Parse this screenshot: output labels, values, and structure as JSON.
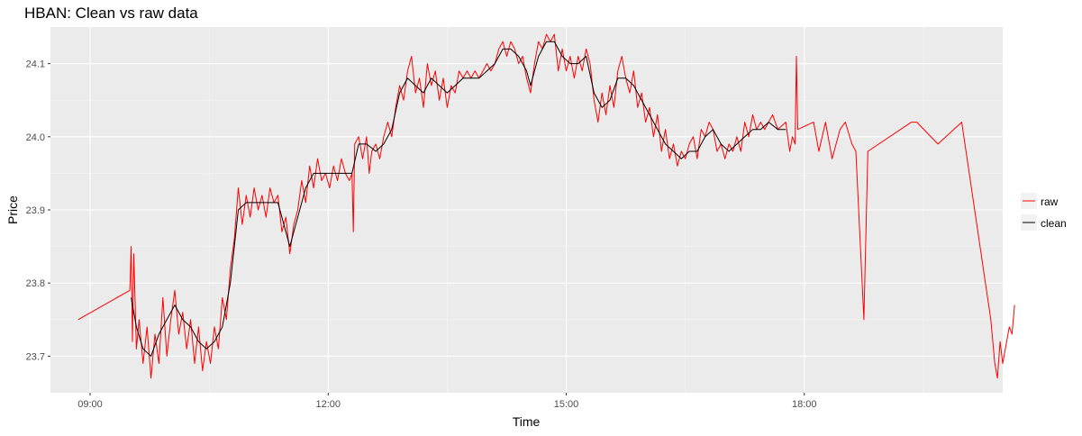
{
  "chart_data": {
    "type": "line",
    "title": "HBAN: Clean vs raw data",
    "xlabel": "Time",
    "ylabel": "Price",
    "xlim": [
      "08:30",
      "20:30"
    ],
    "ylim": [
      23.65,
      24.15
    ],
    "x_ticks": [
      "09:00",
      "12:00",
      "15:00",
      "18:00"
    ],
    "y_ticks": [
      "23.7",
      "23.8",
      "23.9",
      "24.0",
      "24.1"
    ],
    "grid": true,
    "legend": "right",
    "background": "#ebebeb",
    "series": [
      {
        "name": "raw",
        "color": "#ff0000",
        "points": [
          [
            "08:51",
            23.75
          ],
          [
            "09:30",
            23.79
          ],
          [
            "09:31",
            23.85
          ],
          [
            "09:32",
            23.72
          ],
          [
            "09:33",
            23.84
          ],
          [
            "09:35",
            23.71
          ],
          [
            "09:37",
            23.75
          ],
          [
            "09:40",
            23.69
          ],
          [
            "09:43",
            23.74
          ],
          [
            "09:46",
            23.67
          ],
          [
            "09:49",
            23.73
          ],
          [
            "09:52",
            23.69
          ],
          [
            "09:55",
            23.78
          ],
          [
            "09:58",
            23.7
          ],
          [
            "10:01",
            23.75
          ],
          [
            "10:04",
            23.79
          ],
          [
            "10:07",
            23.73
          ],
          [
            "10:10",
            23.76
          ],
          [
            "10:13",
            23.71
          ],
          [
            "10:16",
            23.75
          ],
          [
            "10:19",
            23.69
          ],
          [
            "10:22",
            23.74
          ],
          [
            "10:25",
            23.68
          ],
          [
            "10:28",
            23.72
          ],
          [
            "10:31",
            23.69
          ],
          [
            "10:34",
            23.74
          ],
          [
            "10:37",
            23.71
          ],
          [
            "10:40",
            23.78
          ],
          [
            "10:43",
            23.75
          ],
          [
            "10:46",
            23.82
          ],
          [
            "10:49",
            23.86
          ],
          [
            "10:52",
            23.93
          ],
          [
            "10:55",
            23.88
          ],
          [
            "10:58",
            23.92
          ],
          [
            "11:01",
            23.89
          ],
          [
            "11:04",
            23.93
          ],
          [
            "11:07",
            23.9
          ],
          [
            "11:10",
            23.92
          ],
          [
            "11:13",
            23.89
          ],
          [
            "11:16",
            23.93
          ],
          [
            "11:19",
            23.91
          ],
          [
            "11:22",
            23.92
          ],
          [
            "11:25",
            23.87
          ],
          [
            "11:28",
            23.89
          ],
          [
            "11:31",
            23.84
          ],
          [
            "11:34",
            23.88
          ],
          [
            "11:37",
            23.9
          ],
          [
            "11:40",
            23.94
          ],
          [
            "11:43",
            23.91
          ],
          [
            "11:46",
            23.96
          ],
          [
            "11:49",
            23.93
          ],
          [
            "11:52",
            23.97
          ],
          [
            "11:55",
            23.94
          ],
          [
            "11:58",
            23.95
          ],
          [
            "12:01",
            23.93
          ],
          [
            "12:04",
            23.96
          ],
          [
            "12:07",
            23.94
          ],
          [
            "12:10",
            23.97
          ],
          [
            "12:13",
            23.95
          ],
          [
            "12:16",
            23.94
          ],
          [
            "12:18",
            23.95
          ],
          [
            "12:19",
            23.87
          ],
          [
            "12:20",
            23.99
          ],
          [
            "12:23",
            24.0
          ],
          [
            "12:26",
            23.97
          ],
          [
            "12:29",
            24.0
          ],
          [
            "12:31",
            23.95
          ],
          [
            "12:33",
            23.98
          ],
          [
            "12:36",
            23.99
          ],
          [
            "12:39",
            23.97
          ],
          [
            "12:42",
            24.0
          ],
          [
            "12:45",
            24.02
          ],
          [
            "12:48",
            24.0
          ],
          [
            "12:51",
            24.04
          ],
          [
            "12:54",
            24.07
          ],
          [
            "12:57",
            24.05
          ],
          [
            "13:00",
            24.09
          ],
          [
            "13:03",
            24.11
          ],
          [
            "13:06",
            24.06
          ],
          [
            "13:09",
            24.08
          ],
          [
            "13:12",
            24.04
          ],
          [
            "13:15",
            24.1
          ],
          [
            "13:18",
            24.07
          ],
          [
            "13:21",
            24.09
          ],
          [
            "13:24",
            24.05
          ],
          [
            "13:27",
            24.08
          ],
          [
            "13:30",
            24.04
          ],
          [
            "13:33",
            24.07
          ],
          [
            "13:36",
            24.06
          ],
          [
            "13:39",
            24.09
          ],
          [
            "13:42",
            24.08
          ],
          [
            "13:45",
            24.09
          ],
          [
            "13:48",
            24.08
          ],
          [
            "13:51",
            24.09
          ],
          [
            "13:54",
            24.08
          ],
          [
            "13:57",
            24.09
          ],
          [
            "14:00",
            24.1
          ],
          [
            "14:03",
            24.09
          ],
          [
            "14:06",
            24.1
          ],
          [
            "14:09",
            24.12
          ],
          [
            "14:12",
            24.13
          ],
          [
            "14:15",
            24.11
          ],
          [
            "14:18",
            24.13
          ],
          [
            "14:21",
            24.12
          ],
          [
            "14:24",
            24.1
          ],
          [
            "14:27",
            24.11
          ],
          [
            "14:30",
            24.08
          ],
          [
            "14:33",
            24.06
          ],
          [
            "14:36",
            24.1
          ],
          [
            "14:39",
            24.13
          ],
          [
            "14:42",
            24.12
          ],
          [
            "14:45",
            24.14
          ],
          [
            "14:48",
            24.13
          ],
          [
            "14:51",
            24.14
          ],
          [
            "14:54",
            24.09
          ],
          [
            "14:57",
            24.12
          ],
          [
            "15:00",
            24.09
          ],
          [
            "15:03",
            24.11
          ],
          [
            "15:06",
            24.08
          ],
          [
            "15:09",
            24.11
          ],
          [
            "15:12",
            24.09
          ],
          [
            "15:15",
            24.12
          ],
          [
            "15:18",
            24.1
          ],
          [
            "15:21",
            24.05
          ],
          [
            "15:24",
            24.02
          ],
          [
            "15:27",
            24.06
          ],
          [
            "15:30",
            24.03
          ],
          [
            "15:33",
            24.07
          ],
          [
            "15:36",
            24.04
          ],
          [
            "15:39",
            24.09
          ],
          [
            "15:42",
            24.11
          ],
          [
            "15:45",
            24.08
          ],
          [
            "15:48",
            24.06
          ],
          [
            "15:51",
            24.09
          ],
          [
            "15:54",
            24.04
          ],
          [
            "15:57",
            24.06
          ],
          [
            "16:00",
            24.02
          ],
          [
            "16:03",
            24.04
          ],
          [
            "16:06",
            24.0
          ],
          [
            "16:09",
            24.03
          ],
          [
            "16:12",
            23.98
          ],
          [
            "16:15",
            24.01
          ],
          [
            "16:18",
            23.97
          ],
          [
            "16:21",
            23.99
          ],
          [
            "16:24",
            23.96
          ],
          [
            "16:27",
            23.98
          ],
          [
            "16:30",
            23.97
          ],
          [
            "16:33",
            23.99
          ],
          [
            "16:36",
            24.0
          ],
          [
            "16:39",
            23.97
          ],
          [
            "16:42",
            24.01
          ],
          [
            "16:45",
            24.0
          ],
          [
            "16:48",
            24.02
          ],
          [
            "16:51",
            24.01
          ],
          [
            "16:54",
            23.98
          ],
          [
            "16:57",
            23.99
          ],
          [
            "17:00",
            23.97
          ],
          [
            "17:03",
            23.99
          ],
          [
            "17:06",
            23.98
          ],
          [
            "17:09",
            24.0
          ],
          [
            "17:12",
            23.98
          ],
          [
            "17:15",
            24.02
          ],
          [
            "17:18",
            24.0
          ],
          [
            "17:21",
            24.03
          ],
          [
            "17:24",
            24.01
          ],
          [
            "17:27",
            24.02
          ],
          [
            "17:30",
            24.01
          ],
          [
            "17:33",
            24.02
          ],
          [
            "17:36",
            24.03
          ],
          [
            "17:40",
            24.01
          ],
          [
            "17:46",
            24.02
          ],
          [
            "17:49",
            23.98
          ],
          [
            "17:51",
            24.0
          ],
          [
            "17:53",
            23.99
          ],
          [
            "17:54",
            24.11
          ],
          [
            "17:55",
            24.01
          ],
          [
            "18:07",
            24.02
          ],
          [
            "18:11",
            23.98
          ],
          [
            "18:16",
            24.02
          ],
          [
            "18:21",
            23.97
          ],
          [
            "18:27",
            24.01
          ],
          [
            "18:31",
            24.02
          ],
          [
            "18:36",
            23.99
          ],
          [
            "18:39",
            23.98
          ],
          [
            "18:45",
            23.75
          ],
          [
            "18:48",
            23.98
          ],
          [
            "19:21",
            24.02
          ],
          [
            "19:25",
            24.02
          ],
          [
            "19:41",
            23.99
          ],
          [
            "19:59",
            24.02
          ],
          [
            "20:21",
            23.75
          ],
          [
            "20:24",
            23.69
          ],
          [
            "20:26",
            23.67
          ],
          [
            "20:28",
            23.72
          ],
          [
            "20:30",
            23.69
          ],
          [
            "20:32",
            23.71
          ],
          [
            "20:35",
            23.74
          ],
          [
            "20:37",
            23.73
          ],
          [
            "20:39",
            23.77
          ]
        ]
      },
      {
        "name": "clean",
        "color": "#000000",
        "points": [
          [
            "09:31",
            23.78
          ],
          [
            "09:35",
            23.74
          ],
          [
            "09:40",
            23.71
          ],
          [
            "09:46",
            23.7
          ],
          [
            "09:52",
            23.73
          ],
          [
            "09:58",
            23.75
          ],
          [
            "10:04",
            23.77
          ],
          [
            "10:10",
            23.75
          ],
          [
            "10:16",
            23.74
          ],
          [
            "10:22",
            23.72
          ],
          [
            "10:28",
            23.71
          ],
          [
            "10:34",
            23.72
          ],
          [
            "10:40",
            23.74
          ],
          [
            "10:46",
            23.8
          ],
          [
            "10:52",
            23.9
          ],
          [
            "10:58",
            23.91
          ],
          [
            "11:04",
            23.91
          ],
          [
            "11:10",
            23.91
          ],
          [
            "11:16",
            23.91
          ],
          [
            "11:22",
            23.91
          ],
          [
            "11:28",
            23.87
          ],
          [
            "11:31",
            23.85
          ],
          [
            "11:37",
            23.89
          ],
          [
            "11:43",
            23.93
          ],
          [
            "11:49",
            23.95
          ],
          [
            "11:55",
            23.95
          ],
          [
            "12:01",
            23.95
          ],
          [
            "12:07",
            23.95
          ],
          [
            "12:13",
            23.95
          ],
          [
            "12:18",
            23.95
          ],
          [
            "12:23",
            23.99
          ],
          [
            "12:29",
            23.99
          ],
          [
            "12:36",
            23.98
          ],
          [
            "12:42",
            23.99
          ],
          [
            "12:48",
            24.01
          ],
          [
            "12:54",
            24.06
          ],
          [
            "13:00",
            24.08
          ],
          [
            "13:06",
            24.07
          ],
          [
            "13:12",
            24.06
          ],
          [
            "13:18",
            24.08
          ],
          [
            "13:24",
            24.07
          ],
          [
            "13:30",
            24.06
          ],
          [
            "13:36",
            24.07
          ],
          [
            "13:42",
            24.08
          ],
          [
            "13:48",
            24.08
          ],
          [
            "13:54",
            24.08
          ],
          [
            "14:00",
            24.09
          ],
          [
            "14:06",
            24.1
          ],
          [
            "14:12",
            24.12
          ],
          [
            "14:18",
            24.12
          ],
          [
            "14:24",
            24.11
          ],
          [
            "14:30",
            24.09
          ],
          [
            "14:33",
            24.07
          ],
          [
            "14:39",
            24.11
          ],
          [
            "14:45",
            24.13
          ],
          [
            "14:51",
            24.13
          ],
          [
            "14:57",
            24.11
          ],
          [
            "15:03",
            24.1
          ],
          [
            "15:09",
            24.1
          ],
          [
            "15:15",
            24.11
          ],
          [
            "15:21",
            24.06
          ],
          [
            "15:27",
            24.04
          ],
          [
            "15:33",
            24.05
          ],
          [
            "15:39",
            24.08
          ],
          [
            "15:45",
            24.08
          ],
          [
            "15:51",
            24.07
          ],
          [
            "15:57",
            24.05
          ],
          [
            "16:03",
            24.03
          ],
          [
            "16:09",
            24.01
          ],
          [
            "16:15",
            23.99
          ],
          [
            "16:21",
            23.98
          ],
          [
            "16:27",
            23.97
          ],
          [
            "16:33",
            23.98
          ],
          [
            "16:39",
            23.98
          ],
          [
            "16:45",
            24.0
          ],
          [
            "16:51",
            24.01
          ],
          [
            "16:57",
            23.99
          ],
          [
            "17:03",
            23.98
          ],
          [
            "17:09",
            23.99
          ],
          [
            "17:15",
            24.0
          ],
          [
            "17:21",
            24.01
          ],
          [
            "17:27",
            24.01
          ],
          [
            "17:33",
            24.02
          ],
          [
            "17:40",
            24.01
          ],
          [
            "17:46",
            24.01
          ]
        ]
      }
    ]
  }
}
